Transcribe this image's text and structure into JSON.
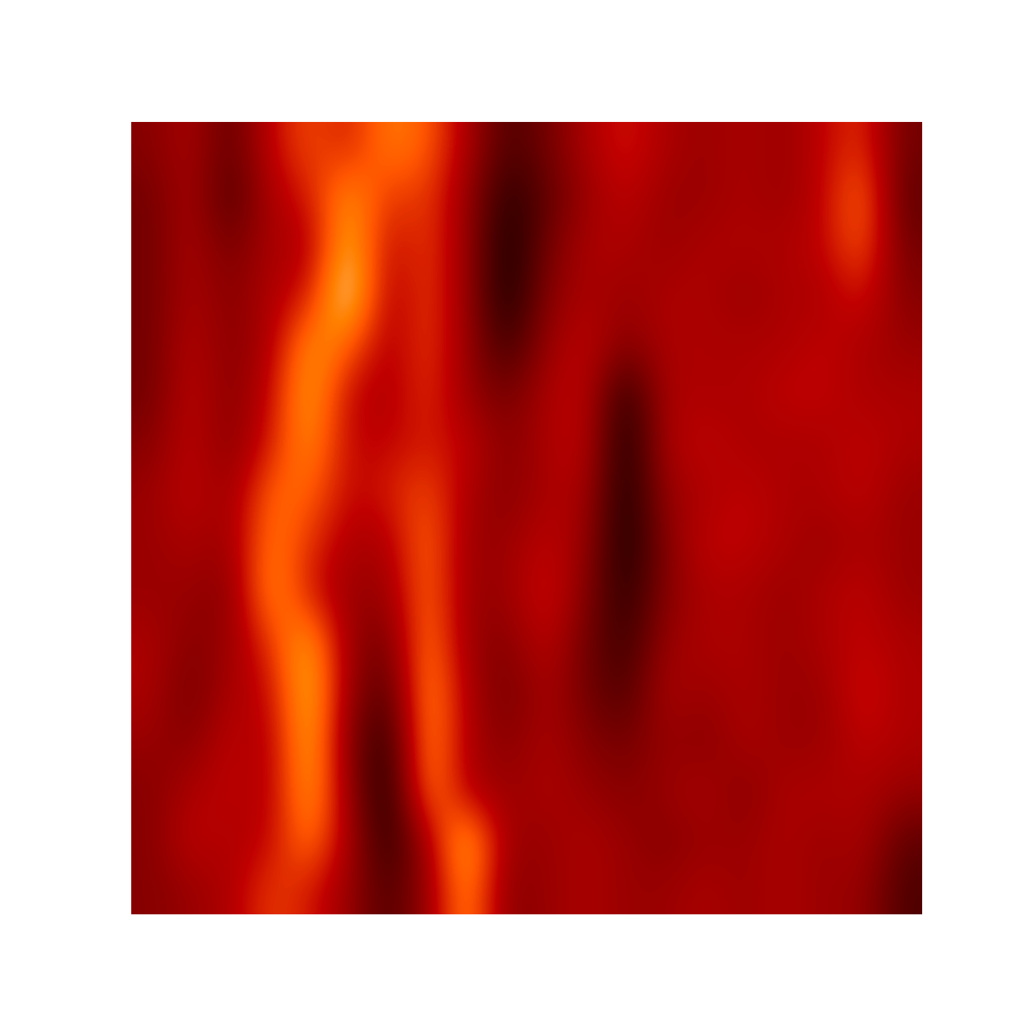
{
  "chart_data": {
    "type": "heatmap",
    "color": "gist_heat",
    "tick_labels": false,
    "clim": [
      0,
      1
    ],
    "cells": [
      [
        0.35,
        0.45,
        0.25,
        0.5,
        0.65,
        0.55,
        0.75,
        0.68,
        0.45,
        0.2,
        0.3,
        0.45,
        0.55,
        0.45,
        0.4,
        0.45,
        0.4,
        0.5,
        0.6,
        0.3
      ],
      [
        0.3,
        0.45,
        0.2,
        0.45,
        0.55,
        0.8,
        0.6,
        0.62,
        0.4,
        0.1,
        0.25,
        0.4,
        0.5,
        0.4,
        0.4,
        0.45,
        0.4,
        0.5,
        0.72,
        0.25
      ],
      [
        0.3,
        0.45,
        0.3,
        0.45,
        0.45,
        0.88,
        0.5,
        0.62,
        0.4,
        0.05,
        0.3,
        0.45,
        0.45,
        0.4,
        0.45,
        0.45,
        0.45,
        0.5,
        0.68,
        0.3
      ],
      [
        0.3,
        0.45,
        0.35,
        0.45,
        0.55,
        0.97,
        0.45,
        0.62,
        0.4,
        0.05,
        0.35,
        0.45,
        0.4,
        0.45,
        0.45,
        0.4,
        0.45,
        0.45,
        0.55,
        0.35
      ],
      [
        0.3,
        0.48,
        0.35,
        0.45,
        0.8,
        0.7,
        0.45,
        0.62,
        0.4,
        0.15,
        0.4,
        0.5,
        0.35,
        0.45,
        0.45,
        0.45,
        0.45,
        0.5,
        0.45,
        0.4
      ],
      [
        0.3,
        0.5,
        0.35,
        0.5,
        0.85,
        0.5,
        0.45,
        0.6,
        0.4,
        0.3,
        0.45,
        0.5,
        0.1,
        0.45,
        0.45,
        0.45,
        0.5,
        0.5,
        0.45,
        0.45
      ],
      [
        0.35,
        0.5,
        0.35,
        0.55,
        0.8,
        0.5,
        0.5,
        0.55,
        0.5,
        0.35,
        0.45,
        0.5,
        0.05,
        0.45,
        0.5,
        0.45,
        0.45,
        0.45,
        0.5,
        0.45
      ],
      [
        0.4,
        0.5,
        0.4,
        0.7,
        0.7,
        0.5,
        0.55,
        0.65,
        0.45,
        0.35,
        0.45,
        0.45,
        0.05,
        0.4,
        0.45,
        0.5,
        0.45,
        0.45,
        0.5,
        0.4
      ],
      [
        0.4,
        0.45,
        0.4,
        0.75,
        0.6,
        0.45,
        0.45,
        0.72,
        0.4,
        0.4,
        0.5,
        0.4,
        0.05,
        0.35,
        0.5,
        0.5,
        0.45,
        0.4,
        0.45,
        0.4
      ],
      [
        0.4,
        0.4,
        0.35,
        0.8,
        0.55,
        0.4,
        0.4,
        0.72,
        0.4,
        0.4,
        0.55,
        0.35,
        0.1,
        0.35,
        0.45,
        0.45,
        0.4,
        0.45,
        0.5,
        0.4
      ],
      [
        0.45,
        0.35,
        0.4,
        0.6,
        0.85,
        0.4,
        0.3,
        0.76,
        0.4,
        0.35,
        0.5,
        0.3,
        0.15,
        0.4,
        0.45,
        0.45,
        0.4,
        0.45,
        0.5,
        0.45
      ],
      [
        0.45,
        0.3,
        0.45,
        0.5,
        0.9,
        0.4,
        0.2,
        0.8,
        0.45,
        0.3,
        0.45,
        0.3,
        0.2,
        0.45,
        0.4,
        0.45,
        0.4,
        0.4,
        0.55,
        0.45
      ],
      [
        0.4,
        0.35,
        0.5,
        0.45,
        0.88,
        0.35,
        0.1,
        0.8,
        0.45,
        0.35,
        0.45,
        0.35,
        0.3,
        0.4,
        0.35,
        0.45,
        0.4,
        0.4,
        0.5,
        0.45
      ],
      [
        0.35,
        0.45,
        0.5,
        0.45,
        0.85,
        0.4,
        0.05,
        0.78,
        0.45,
        0.4,
        0.45,
        0.4,
        0.35,
        0.4,
        0.45,
        0.35,
        0.45,
        0.45,
        0.45,
        0.4
      ],
      [
        0.35,
        0.5,
        0.45,
        0.5,
        0.75,
        0.45,
        0.1,
        0.45,
        0.88,
        0.4,
        0.4,
        0.45,
        0.4,
        0.35,
        0.4,
        0.4,
        0.45,
        0.4,
        0.45,
        0.25
      ],
      [
        0.35,
        0.4,
        0.45,
        0.62,
        0.55,
        0.4,
        0.2,
        0.4,
        0.8,
        0.35,
        0.4,
        0.45,
        0.4,
        0.4,
        0.45,
        0.4,
        0.45,
        0.4,
        0.4,
        0.2
      ]
    ]
  }
}
